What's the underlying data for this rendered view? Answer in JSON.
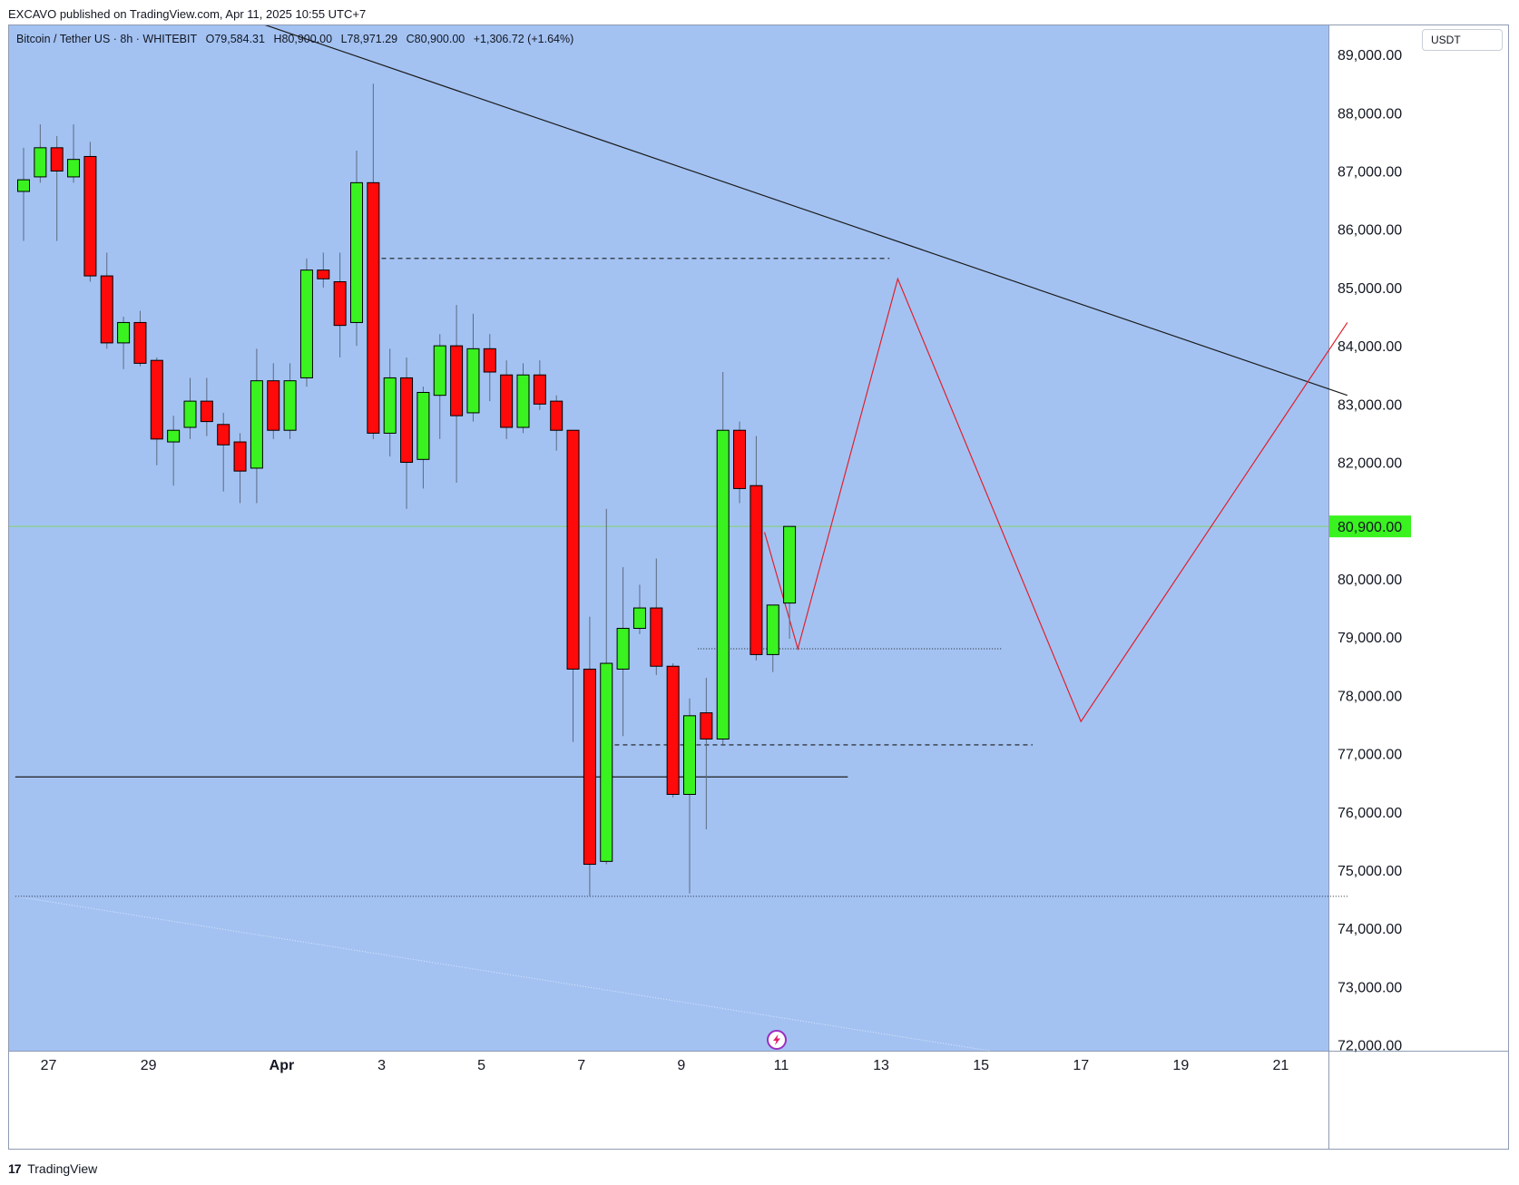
{
  "header": {
    "published": "EXCAVO published on TradingView.com, Apr 11, 2025 10:55 UTC+7"
  },
  "legend": {
    "symbol": "Bitcoin / Tether US · 8h · WHITEBIT",
    "open": "O79,584.31",
    "high": "H80,900.00",
    "low": "L78,971.29",
    "close": "C80,900.00",
    "change": "+1,306.72 (+1.64%)"
  },
  "currency_button": "USDT",
  "footer": {
    "brand_mark": "17",
    "brand": "TradingView"
  },
  "colors": {
    "background": "#a3c2f2",
    "up": "#39f21f",
    "down": "#ff0a0a",
    "wick": "#5b6a80",
    "last_price_badge": "#39f21f",
    "projection_line": "#e0202c",
    "trend_line": "#1c1c1c"
  },
  "chart_data": {
    "type": "candlestick",
    "interval": "8h",
    "last_price": 80900,
    "last_price_label": "80,900.00",
    "ylim": [
      71900,
      89500
    ],
    "y_ticks": [
      72000,
      73000,
      74000,
      75000,
      76000,
      77000,
      78000,
      79000,
      80000,
      81000,
      82000,
      83000,
      84000,
      85000,
      86000,
      87000,
      88000,
      89000
    ],
    "y_tick_labels": [
      "72,000.00",
      "73,000.00",
      "74,000.00",
      "75,000.00",
      "76,000.00",
      "77,000.00",
      "78,000.00",
      "79,000.00",
      "80,000.00",
      "81,000.00",
      "82,000.00",
      "83,000.00",
      "84,000.00",
      "85,000.00",
      "86,000.00",
      "87,000.00",
      "88,000.00",
      "89,000.00"
    ],
    "x_ticks": [
      "27",
      "29",
      "Apr",
      "3",
      "5",
      "7",
      "9",
      "11",
      "13",
      "15",
      "17",
      "19",
      "21"
    ],
    "x_ticks_bold": [
      "Apr"
    ],
    "x_tick_index": [
      1.5,
      7.5,
      15.5,
      21.5,
      27.5,
      33.5,
      39.5,
      45.5,
      51.5,
      57.5,
      63.5,
      69.5,
      75.5
    ],
    "candles": [
      {
        "o": 86650,
        "h": 87400,
        "l": 85800,
        "c": 86850
      },
      {
        "o": 86900,
        "h": 87800,
        "l": 86800,
        "c": 87400
      },
      {
        "o": 87400,
        "h": 87600,
        "l": 85800,
        "c": 87000
      },
      {
        "o": 86900,
        "h": 87800,
        "l": 86800,
        "c": 87200
      },
      {
        "o": 87250,
        "h": 87500,
        "l": 85100,
        "c": 85200
      },
      {
        "o": 85200,
        "h": 85600,
        "l": 83950,
        "c": 84050
      },
      {
        "o": 84050,
        "h": 84500,
        "l": 83600,
        "c": 84400
      },
      {
        "o": 84400,
        "h": 84600,
        "l": 83650,
        "c": 83700
      },
      {
        "o": 83750,
        "h": 83800,
        "l": 81950,
        "c": 82400
      },
      {
        "o": 82350,
        "h": 82800,
        "l": 81600,
        "c": 82550
      },
      {
        "o": 82600,
        "h": 83450,
        "l": 82400,
        "c": 83050
      },
      {
        "o": 83050,
        "h": 83450,
        "l": 82450,
        "c": 82700
      },
      {
        "o": 82650,
        "h": 82850,
        "l": 81500,
        "c": 82300
      },
      {
        "o": 82350,
        "h": 82500,
        "l": 81300,
        "c": 81850
      },
      {
        "o": 81900,
        "h": 83950,
        "l": 81300,
        "c": 83400
      },
      {
        "o": 83400,
        "h": 83700,
        "l": 82400,
        "c": 82550
      },
      {
        "o": 82550,
        "h": 83700,
        "l": 82400,
        "c": 83400
      },
      {
        "o": 83450,
        "h": 85500,
        "l": 83300,
        "c": 85300
      },
      {
        "o": 85300,
        "h": 85600,
        "l": 85000,
        "c": 85150
      },
      {
        "o": 85100,
        "h": 85600,
        "l": 83800,
        "c": 84350
      },
      {
        "o": 84400,
        "h": 87350,
        "l": 84000,
        "c": 86800
      },
      {
        "o": 86800,
        "h": 88500,
        "l": 82400,
        "c": 82500
      },
      {
        "o": 82500,
        "h": 83950,
        "l": 82100,
        "c": 83450
      },
      {
        "o": 83450,
        "h": 83800,
        "l": 81200,
        "c": 82000
      },
      {
        "o": 82050,
        "h": 83300,
        "l": 81550,
        "c": 83200
      },
      {
        "o": 83150,
        "h": 84200,
        "l": 82400,
        "c": 84000
      },
      {
        "o": 84000,
        "h": 84700,
        "l": 81650,
        "c": 82800
      },
      {
        "o": 82850,
        "h": 84550,
        "l": 82700,
        "c": 83950
      },
      {
        "o": 83950,
        "h": 84200,
        "l": 83050,
        "c": 83550
      },
      {
        "o": 83500,
        "h": 83750,
        "l": 82400,
        "c": 82600
      },
      {
        "o": 82600,
        "h": 83700,
        "l": 82500,
        "c": 83500
      },
      {
        "o": 83500,
        "h": 83750,
        "l": 82900,
        "c": 83000
      },
      {
        "o": 83050,
        "h": 83150,
        "l": 82200,
        "c": 82550
      },
      {
        "o": 82550,
        "h": 82550,
        "l": 77200,
        "c": 78450
      },
      {
        "o": 78450,
        "h": 79350,
        "l": 74550,
        "c": 75100
      },
      {
        "o": 75150,
        "h": 81200,
        "l": 75100,
        "c": 78550
      },
      {
        "o": 78450,
        "h": 80200,
        "l": 77300,
        "c": 79150
      },
      {
        "o": 79150,
        "h": 79900,
        "l": 79050,
        "c": 79500
      },
      {
        "o": 79500,
        "h": 80350,
        "l": 78350,
        "c": 78500
      },
      {
        "o": 78500,
        "h": 78550,
        "l": 76250,
        "c": 76300
      },
      {
        "o": 76300,
        "h": 77950,
        "l": 74600,
        "c": 77650
      },
      {
        "o": 77700,
        "h": 78300,
        "l": 75700,
        "c": 77250
      },
      {
        "o": 77250,
        "h": 83550,
        "l": 77150,
        "c": 82550
      },
      {
        "o": 82550,
        "h": 82700,
        "l": 81300,
        "c": 81550
      },
      {
        "o": 81600,
        "h": 82450,
        "l": 78600,
        "c": 78700
      },
      {
        "o": 78700,
        "h": 79550,
        "l": 78400,
        "c": 79550
      },
      {
        "o": 79584.31,
        "h": 80900,
        "l": 78971.29,
        "c": 80900
      }
    ],
    "descending_trendline": [
      {
        "i": 10.5,
        "p": 89900
      },
      {
        "i": 79.5,
        "p": 83150
      }
    ],
    "support_line_solid": [
      {
        "i": -0.5,
        "p": 76600
      },
      {
        "i": 49.5,
        "p": 76600
      }
    ],
    "resistance_dashed": [
      {
        "i": 21.5,
        "p": 85500
      },
      {
        "i": 52.0,
        "p": 85500
      }
    ],
    "mid_dotted": [
      {
        "i": 40.5,
        "p": 78800
      },
      {
        "i": 58.8,
        "p": 78800
      }
    ],
    "low_dashed": [
      {
        "i": 35.5,
        "p": 77150
      },
      {
        "i": 60.6,
        "p": 77150
      }
    ],
    "bottom_dotted": [
      {
        "i": -0.5,
        "p": 74550
      },
      {
        "i": 79.5,
        "p": 74550
      }
    ],
    "lower_channel_dotted": [
      {
        "i": -0.5,
        "p": 74550
      },
      {
        "i": 58.0,
        "p": 71900
      }
    ],
    "projection_path": [
      {
        "i": 44.5,
        "p": 80800
      },
      {
        "i": 46.5,
        "p": 78800
      },
      {
        "i": 52.5,
        "p": 85150
      },
      {
        "i": 63.5,
        "p": 77550
      },
      {
        "i": 79.5,
        "p": 84400
      }
    ]
  }
}
